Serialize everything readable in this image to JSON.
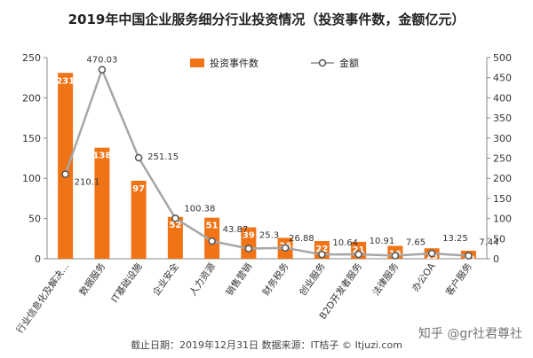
{
  "chart_data": {
    "type": "bar",
    "title": "2019年中国企业服务细分行业投资情况（投资事件数，金额亿元）",
    "categories": [
      "行业信息化及解决...",
      "数据服务",
      "IT基础设施",
      "企业安全",
      "人力资源",
      "销售营销",
      "财务税务",
      "创业服务",
      "B2D开发者服务",
      "法律服务",
      "办公OA",
      "客户服务"
    ],
    "series": [
      {
        "name": "投资事件数",
        "type": "bar",
        "axis": "left",
        "color": "#F07316",
        "values": [
          231,
          138,
          97,
          52,
          51,
          39,
          26,
          22,
          21,
          16,
          13,
          10
        ]
      },
      {
        "name": "金额",
        "type": "line",
        "axis": "right",
        "color": "#A6A6A6",
        "values": [
          210.1,
          470.03,
          251.15,
          100.38,
          43.87,
          25.3,
          26.88,
          10.64,
          10.91,
          7.65,
          13.25,
          7.44
        ],
        "labels": [
          "210.1",
          "470.03",
          "251.15",
          "100.38",
          "43.87",
          "25.3",
          "26.88",
          "10.64",
          "10.91",
          "7.65",
          "13.25",
          "7.44"
        ]
      }
    ],
    "yleft": {
      "min": 0,
      "max": 250,
      "ticks": [
        "0",
        "50",
        "100",
        "150",
        "200",
        "250"
      ]
    },
    "yright": {
      "min": 0,
      "max": 500,
      "ticks": [
        "0",
        "50",
        "100",
        "150",
        "200",
        "250",
        "300",
        "350",
        "400",
        "450",
        "500"
      ]
    },
    "legend_position": "top-center",
    "grid": false
  },
  "footer": "截止日期：2019年12月31日    数据来源：IT桔子 © Itjuzi.com",
  "watermark": "知乎 @gr社君尊社"
}
